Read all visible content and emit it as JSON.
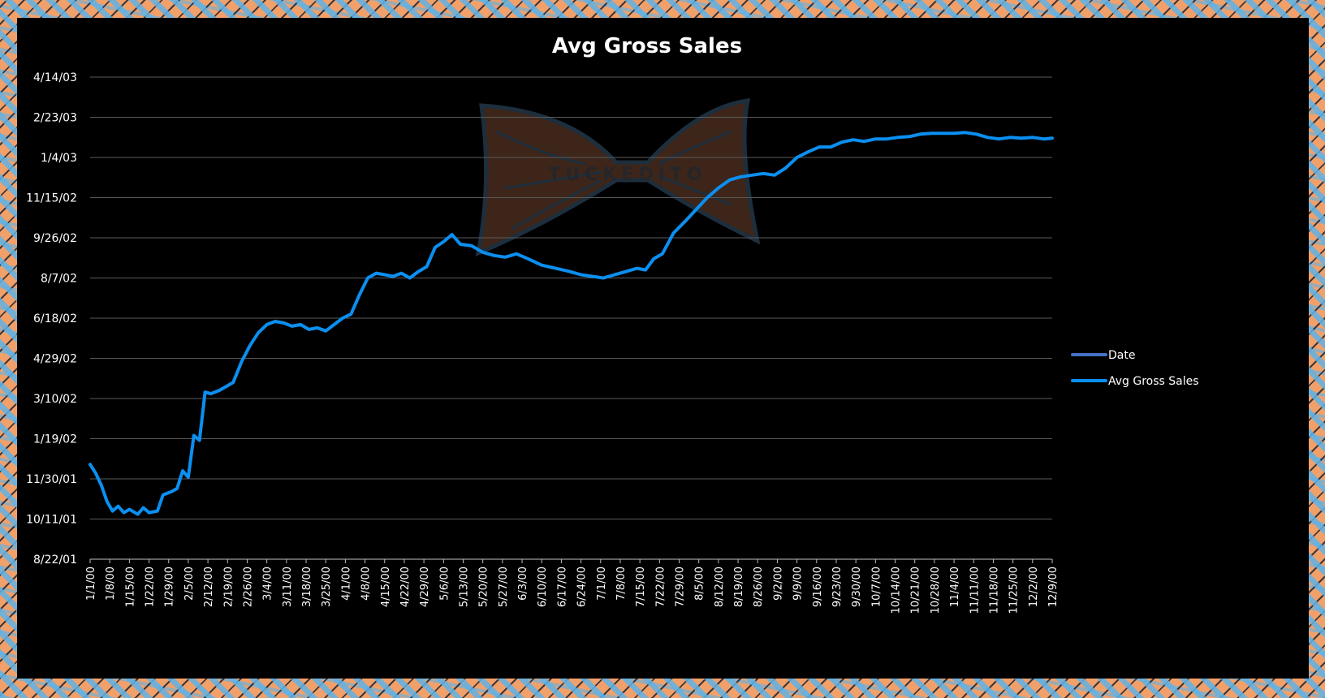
{
  "chart_data": {
    "type": "line",
    "title": "Avg Gross Sales",
    "xlabel": "",
    "ylabel": "",
    "x_ticks": [
      "1/1/00",
      "1/8/00",
      "1/15/00",
      "1/22/00",
      "1/29/00",
      "2/5/00",
      "2/12/00",
      "2/19/00",
      "2/26/00",
      "3/4/00",
      "3/11/00",
      "3/18/00",
      "3/25/00",
      "4/1/00",
      "4/8/00",
      "4/15/00",
      "4/22/00",
      "4/29/00",
      "5/6/00",
      "5/13/00",
      "5/20/00",
      "5/27/00",
      "6/3/00",
      "6/10/00",
      "6/17/00",
      "6/24/00",
      "7/1/00",
      "7/8/00",
      "7/15/00",
      "7/22/00",
      "7/29/00",
      "8/5/00",
      "8/12/00",
      "8/19/00",
      "8/26/00",
      "9/2/00",
      "9/9/00",
      "9/16/00",
      "9/23/00",
      "9/30/00",
      "10/7/00",
      "10/14/00",
      "10/21/00",
      "10/28/00",
      "11/4/00",
      "11/11/00",
      "11/18/00",
      "11/25/00",
      "12/2/00",
      "12/9/00"
    ],
    "y_ticks": [
      "8/22/01",
      "10/11/01",
      "11/30/01",
      "1/19/02",
      "3/10/02",
      "4/29/02",
      "6/18/02",
      "8/7/02",
      "9/26/02",
      "11/15/02",
      "1/4/03",
      "2/23/03",
      "4/14/03"
    ],
    "xlim": [
      "1/1/00",
      "12/9/00"
    ],
    "ylim": [
      "8/22/01",
      "4/14/03"
    ],
    "grid": true,
    "legend_position": "right",
    "series": [
      {
        "name": "Date",
        "color": "#4472c4",
        "values": []
      },
      {
        "name": "Avg Gross Sales",
        "color": "#0b8ff0",
        "x": [
          "1/1/00",
          "1/3/00",
          "1/5/00",
          "1/7/00",
          "1/9/00",
          "1/11/00",
          "1/13/00",
          "1/15/00",
          "1/18/00",
          "1/20/00",
          "1/22/00",
          "1/25/00",
          "1/27/00",
          "1/30/00",
          "2/1/00",
          "2/3/00",
          "2/5/00",
          "2/7/00",
          "2/9/00",
          "2/11/00",
          "2/13/00",
          "2/16/00",
          "2/19/00",
          "2/21/00",
          "2/24/00",
          "2/27/00",
          "3/1/00",
          "3/4/00",
          "3/7/00",
          "3/10/00",
          "3/13/00",
          "3/16/00",
          "3/19/00",
          "3/22/00",
          "3/25/00",
          "3/28/00",
          "3/31/00",
          "4/3/00",
          "4/6/00",
          "4/9/00",
          "4/12/00",
          "4/15/00",
          "4/18/00",
          "4/21/00",
          "4/24/00",
          "4/27/00",
          "4/30/00",
          "5/3/00",
          "5/6/00",
          "5/9/00",
          "5/12/00",
          "5/16/00",
          "5/20/00",
          "5/24/00",
          "5/28/00",
          "6/1/00",
          "6/5/00",
          "6/10/00",
          "6/15/00",
          "6/20/00",
          "6/24/00",
          "6/28/00",
          "7/2/00",
          "7/6/00",
          "7/10/00",
          "7/14/00",
          "7/17/00",
          "7/20/00",
          "7/23/00",
          "7/27/00",
          "7/31/00",
          "8/4/00",
          "8/8/00",
          "8/12/00",
          "8/16/00",
          "8/20/00",
          "8/24/00",
          "8/28/00",
          "9/1/00",
          "9/5/00",
          "9/9/00",
          "9/13/00",
          "9/17/00",
          "9/21/00",
          "9/25/00",
          "9/29/00",
          "10/3/00",
          "10/7/00",
          "10/11/00",
          "10/15/00",
          "10/19/00",
          "10/23/00",
          "10/27/00",
          "10/31/00",
          "11/4/00",
          "11/8/00",
          "11/12/00",
          "11/16/00",
          "11/20/00",
          "11/24/00",
          "11/28/00",
          "12/2/00",
          "12/6/00",
          "12/9/00"
        ],
        "y": [
          "12/18/01",
          "12/7/01",
          "11/22/01",
          "11/2/01",
          "10/21/01",
          "10/27/01",
          "10/19/01",
          "10/23/01",
          "10/17/01",
          "10/25/01",
          "10/19/01",
          "10/21/01",
          "11/10/01",
          "11/14/01",
          "11/18/01",
          "12/10/01",
          "12/2/01",
          "1/23/02",
          "1/17/02",
          "3/18/02",
          "3/16/02",
          "3/20/02",
          "3/26/02",
          "3/30/02",
          "4/25/02",
          "5/15/02",
          "5/31/02",
          "6/10/02",
          "6/14/02",
          "6/12/02",
          "6/8/02",
          "6/10/02",
          "6/4/02",
          "6/6/02",
          "6/2/02",
          "6/10/02",
          "6/18/02",
          "6/23/02",
          "7/17/02",
          "8/7/02",
          "8/13/02",
          "8/11/02",
          "8/9/02",
          "8/13/02",
          "8/7/02",
          "8/15/02",
          "8/21/02",
          "9/14/02",
          "9/21/02",
          "9/30/02",
          "9/18/02",
          "9/16/02",
          "9/8/02",
          "9/4/02",
          "9/2/02",
          "9/6/02",
          "8/31/02",
          "8/23/02",
          "8/19/02",
          "8/15/02",
          "8/11/02",
          "8/9/02",
          "8/7/02",
          "8/11/02",
          "8/15/02",
          "8/19/02",
          "8/17/02",
          "8/31/02",
          "9/6/02",
          "10/2/02",
          "10/16/02",
          "10/31/02",
          "11/15/02",
          "11/27/02",
          "12/7/02",
          "12/11/02",
          "12/13/02",
          "12/15/02",
          "12/13/02",
          "12/22/02",
          "1/4/03",
          "1/11/03",
          "1/17/03",
          "1/17/03",
          "1/23/03",
          "1/26/03",
          "1/24/03",
          "1/27/03",
          "1/27/03",
          "1/29/03",
          "1/30/03",
          "2/2/03",
          "2/3/03",
          "2/3/03",
          "2/3/03",
          "2/4/03",
          "2/2/03",
          "1/29/03",
          "1/27/03",
          "1/29/03",
          "1/28/03",
          "1/29/03",
          "1/27/03",
          "1/28/03"
        ]
      }
    ]
  }
}
